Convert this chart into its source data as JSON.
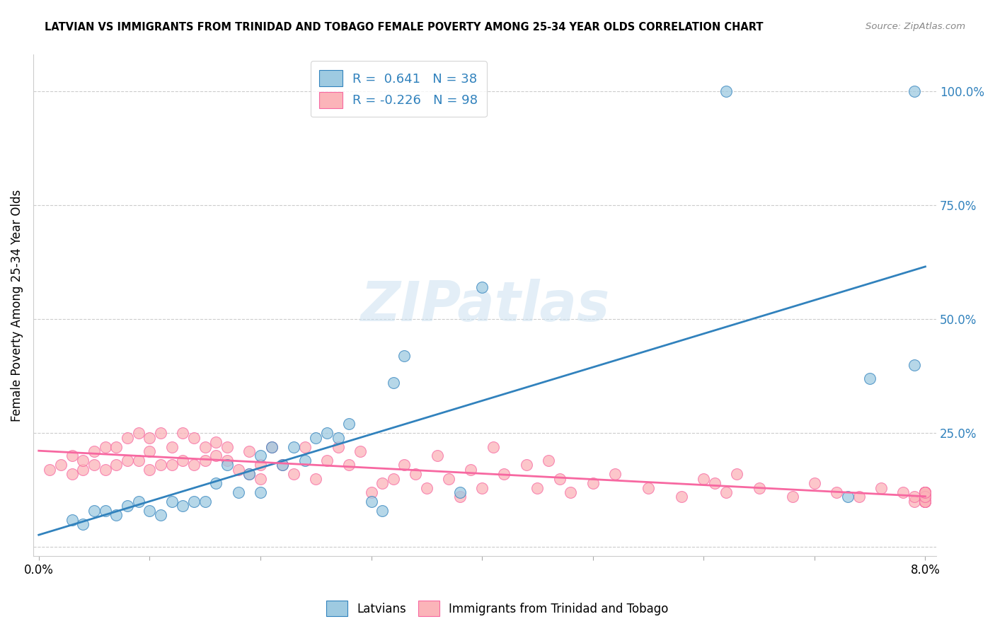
{
  "title": "LATVIAN VS IMMIGRANTS FROM TRINIDAD AND TOBAGO FEMALE POVERTY AMONG 25-34 YEAR OLDS CORRELATION CHART",
  "source": "Source: ZipAtlas.com",
  "ylabel": "Female Poverty Among 25-34 Year Olds",
  "xlim": [
    0.0,
    0.08
  ],
  "ylim": [
    -0.02,
    1.08
  ],
  "legend_blue_r": "0.641",
  "legend_blue_n": "38",
  "legend_pink_r": "-0.226",
  "legend_pink_n": "98",
  "blue_face_color": "#9ecae1",
  "blue_edge_color": "#3182bd",
  "pink_face_color": "#fbb4b9",
  "pink_edge_color": "#f768a1",
  "blue_line_color": "#3182bd",
  "pink_line_color": "#f768a1",
  "right_tick_color": "#3182bd",
  "watermark": "ZIPatlas",
  "blue_x": [
    0.003,
    0.004,
    0.005,
    0.006,
    0.007,
    0.008,
    0.009,
    0.01,
    0.011,
    0.012,
    0.013,
    0.014,
    0.015,
    0.016,
    0.017,
    0.018,
    0.019,
    0.02,
    0.02,
    0.021,
    0.022,
    0.023,
    0.024,
    0.025,
    0.026,
    0.027,
    0.028,
    0.03,
    0.031,
    0.032,
    0.033,
    0.038,
    0.04,
    0.062,
    0.073,
    0.079,
    0.075,
    0.079
  ],
  "blue_y": [
    0.06,
    0.05,
    0.08,
    0.08,
    0.07,
    0.09,
    0.1,
    0.08,
    0.07,
    0.1,
    0.09,
    0.1,
    0.1,
    0.14,
    0.18,
    0.12,
    0.16,
    0.12,
    0.2,
    0.22,
    0.18,
    0.22,
    0.19,
    0.24,
    0.25,
    0.24,
    0.27,
    0.1,
    0.08,
    0.36,
    0.42,
    0.12,
    0.57,
    1.0,
    0.11,
    1.0,
    0.37,
    0.4
  ],
  "pink_x": [
    0.001,
    0.002,
    0.003,
    0.003,
    0.004,
    0.004,
    0.005,
    0.005,
    0.006,
    0.006,
    0.007,
    0.007,
    0.008,
    0.008,
    0.009,
    0.009,
    0.01,
    0.01,
    0.01,
    0.011,
    0.011,
    0.012,
    0.012,
    0.013,
    0.013,
    0.014,
    0.014,
    0.015,
    0.015,
    0.016,
    0.016,
    0.017,
    0.017,
    0.018,
    0.019,
    0.019,
    0.02,
    0.02,
    0.021,
    0.022,
    0.023,
    0.024,
    0.025,
    0.026,
    0.027,
    0.028,
    0.029,
    0.03,
    0.031,
    0.032,
    0.033,
    0.034,
    0.035,
    0.036,
    0.037,
    0.038,
    0.039,
    0.04,
    0.041,
    0.042,
    0.044,
    0.045,
    0.046,
    0.047,
    0.048,
    0.05,
    0.052,
    0.055,
    0.058,
    0.06,
    0.061,
    0.062,
    0.063,
    0.065,
    0.068,
    0.07,
    0.072,
    0.074,
    0.076,
    0.078,
    0.079,
    0.079,
    0.08,
    0.08,
    0.08,
    0.08,
    0.08,
    0.08,
    0.08,
    0.08,
    0.08,
    0.08,
    0.08,
    0.08,
    0.08,
    0.08,
    0.08,
    0.08
  ],
  "pink_y": [
    0.17,
    0.18,
    0.16,
    0.2,
    0.17,
    0.19,
    0.18,
    0.21,
    0.17,
    0.22,
    0.18,
    0.22,
    0.19,
    0.24,
    0.19,
    0.25,
    0.17,
    0.21,
    0.24,
    0.18,
    0.25,
    0.18,
    0.22,
    0.19,
    0.25,
    0.18,
    0.24,
    0.19,
    0.22,
    0.2,
    0.23,
    0.19,
    0.22,
    0.17,
    0.16,
    0.21,
    0.18,
    0.15,
    0.22,
    0.18,
    0.16,
    0.22,
    0.15,
    0.19,
    0.22,
    0.18,
    0.21,
    0.12,
    0.14,
    0.15,
    0.18,
    0.16,
    0.13,
    0.2,
    0.15,
    0.11,
    0.17,
    0.13,
    0.22,
    0.16,
    0.18,
    0.13,
    0.19,
    0.15,
    0.12,
    0.14,
    0.16,
    0.13,
    0.11,
    0.15,
    0.14,
    0.12,
    0.16,
    0.13,
    0.11,
    0.14,
    0.12,
    0.11,
    0.13,
    0.12,
    0.1,
    0.11,
    0.12,
    0.1,
    0.11,
    0.12,
    0.1,
    0.11,
    0.12,
    0.1,
    0.11,
    0.12,
    0.1,
    0.11,
    0.12,
    0.1,
    0.11,
    0.12
  ]
}
